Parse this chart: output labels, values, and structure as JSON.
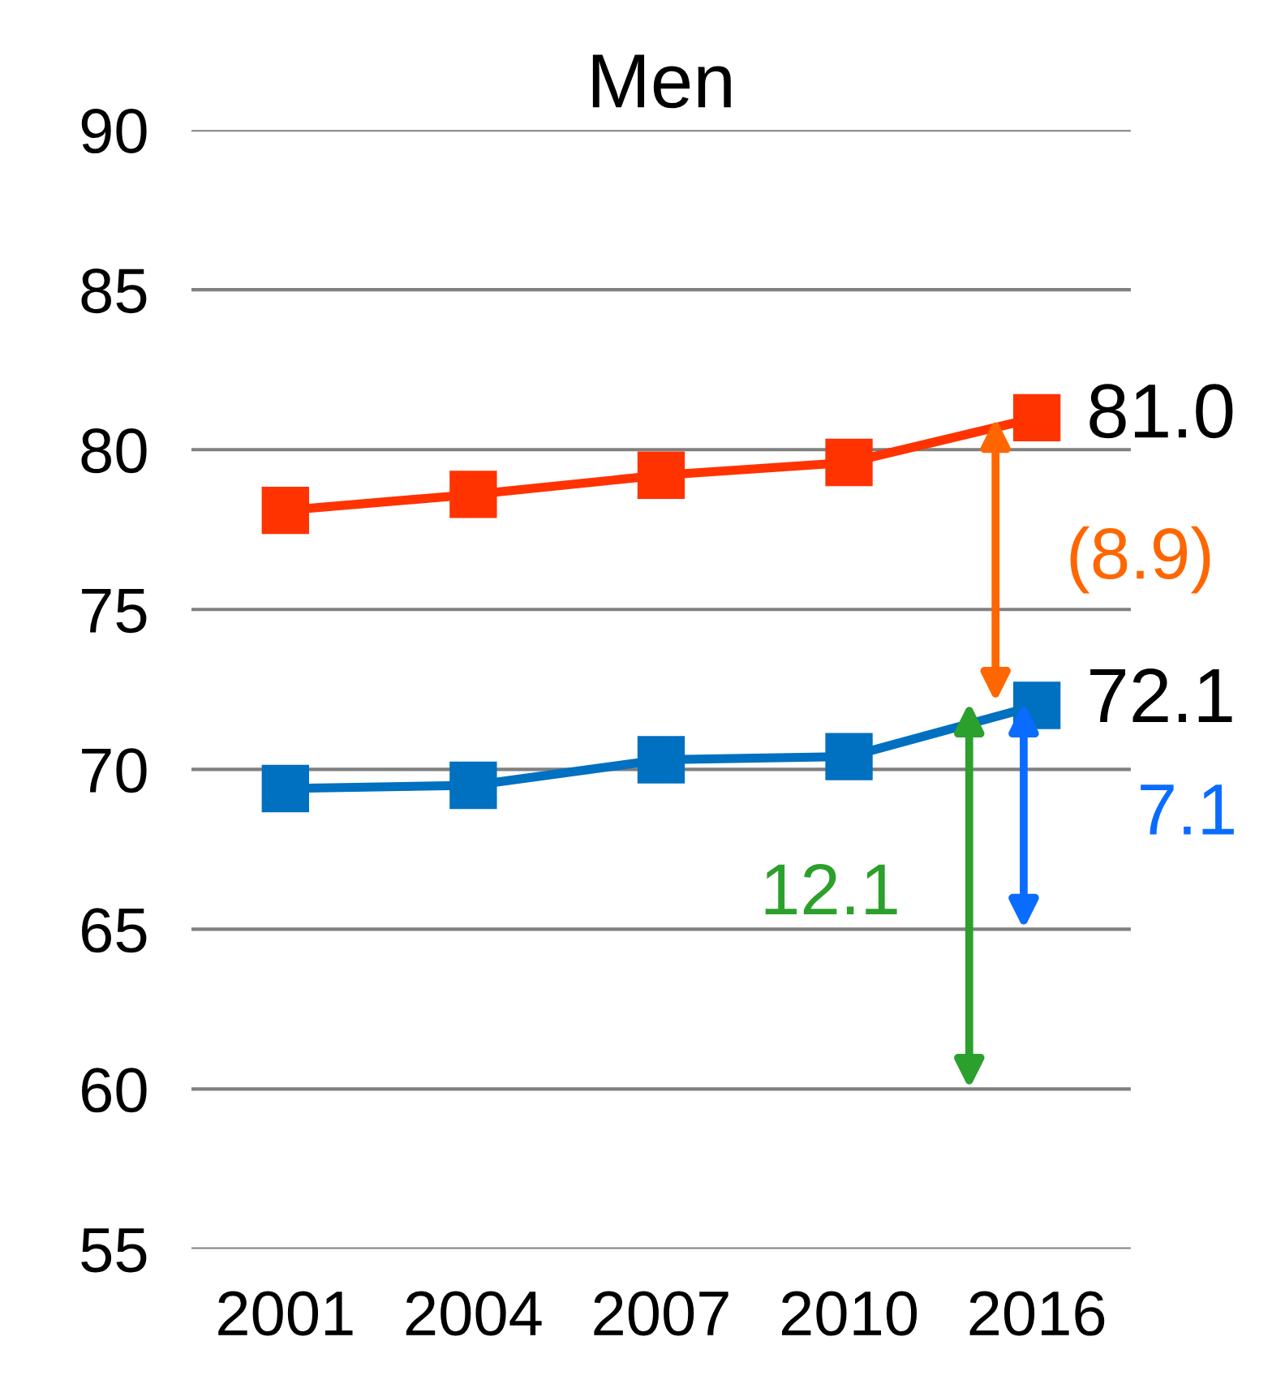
{
  "chart_data": {
    "type": "line",
    "title": "Men",
    "categories": [
      "2001",
      "2004",
      "2007",
      "2010",
      "2016"
    ],
    "series": [
      {
        "color": "#ff3300",
        "values": [
          78.1,
          78.6,
          79.2,
          79.6,
          81.0
        ]
      },
      {
        "color": "#0070c0",
        "values": [
          69.4,
          69.5,
          70.3,
          70.4,
          72.0
        ]
      }
    ],
    "ylim": [
      55,
      90
    ],
    "yticks": [
      55,
      60,
      65,
      70,
      75,
      80,
      85,
      90
    ],
    "grid": "y",
    "marker": "square",
    "line_style": "solid",
    "legend": false,
    "annotations": [
      {
        "text": "81.0",
        "x": "2016",
        "y": 81.0
      },
      {
        "text": "72.1",
        "x": "2016",
        "y": 72.1
      },
      {
        "text": "(8.9)",
        "x": "2016",
        "y": 72.1
      },
      "7.1",
      "12.1"
    ]
  }
}
